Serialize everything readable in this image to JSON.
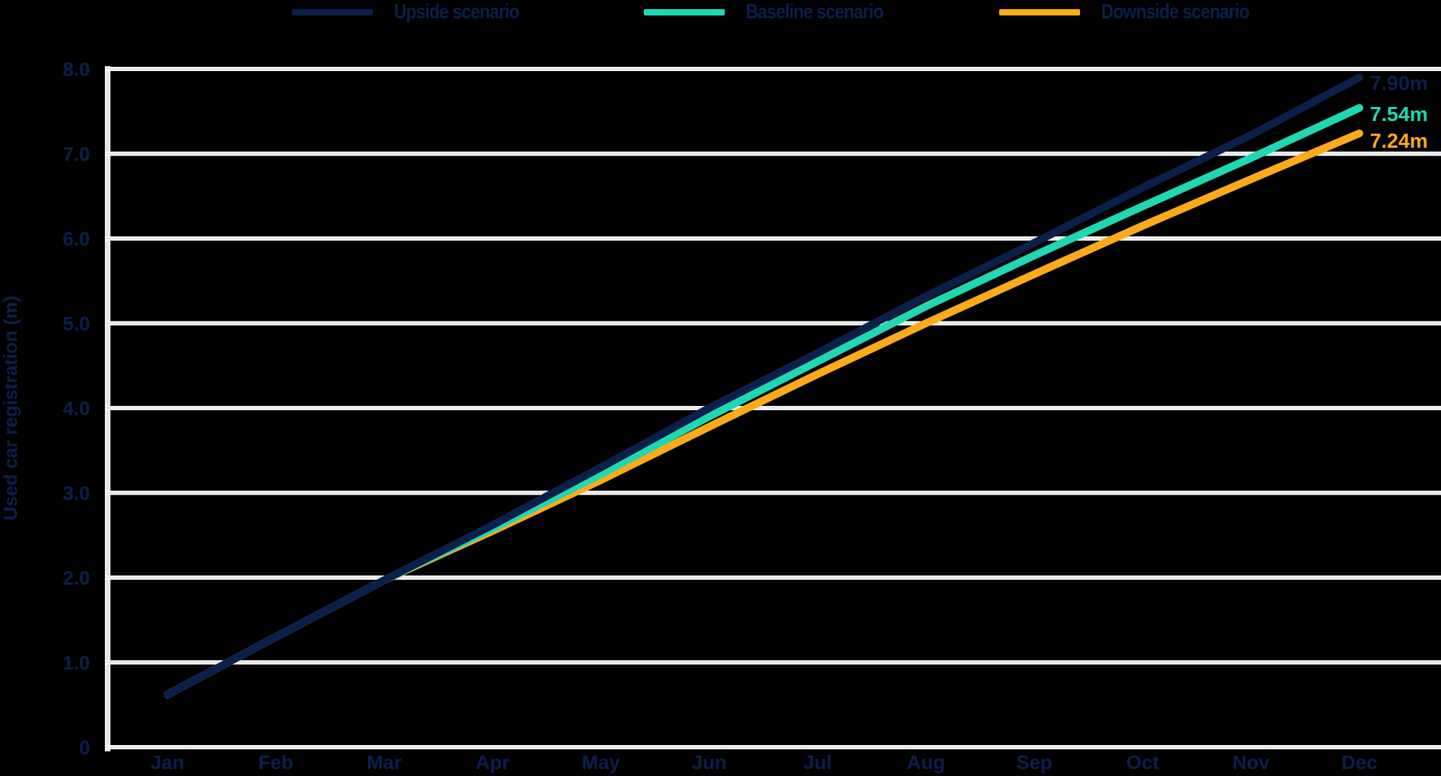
{
  "legend": {
    "items": [
      {
        "label": "Upside scenario",
        "color": "#0b1f4b"
      },
      {
        "label": "Baseline scenario",
        "color": "#1fd8b2"
      },
      {
        "label": "Downside scenario",
        "color": "#fbaa19"
      }
    ]
  },
  "end_labels": [
    "7.90m",
    "7.54m",
    "7.24m"
  ],
  "chart_data": {
    "type": "line",
    "title": "",
    "xlabel": "",
    "ylabel": "Used car registration (m)",
    "categories": [
      "Jan",
      "Feb",
      "Mar",
      "Apr",
      "May",
      "Jun",
      "Jul",
      "Aug",
      "Sep",
      "Oct",
      "Nov",
      "Dec"
    ],
    "y_ticks": [
      "0",
      "1.0",
      "2.0",
      "3.0",
      "4.0",
      "5.0",
      "6.0",
      "7.0",
      "8.0"
    ],
    "ylim": [
      0,
      8
    ],
    "grid": true,
    "legend_position": "top",
    "series": [
      {
        "name": "Upside scenario",
        "color": "#0b1f4b",
        "end_label": "7.90m",
        "values": [
          0.62,
          1.3,
          1.97,
          2.62,
          3.3,
          4.0,
          4.65,
          5.32,
          5.95,
          6.6,
          7.22,
          7.9
        ]
      },
      {
        "name": "Baseline scenario",
        "color": "#1fd8b2",
        "end_label": "7.54m",
        "values": [
          0.62,
          1.3,
          1.97,
          2.58,
          3.22,
          3.9,
          4.55,
          5.2,
          5.8,
          6.38,
          6.95,
          7.54
        ]
      },
      {
        "name": "Downside scenario",
        "color": "#fbaa19",
        "end_label": "7.24m",
        "values": [
          0.62,
          1.3,
          1.97,
          2.55,
          3.15,
          3.78,
          4.4,
          5.0,
          5.58,
          6.15,
          6.7,
          7.24
        ]
      }
    ]
  }
}
